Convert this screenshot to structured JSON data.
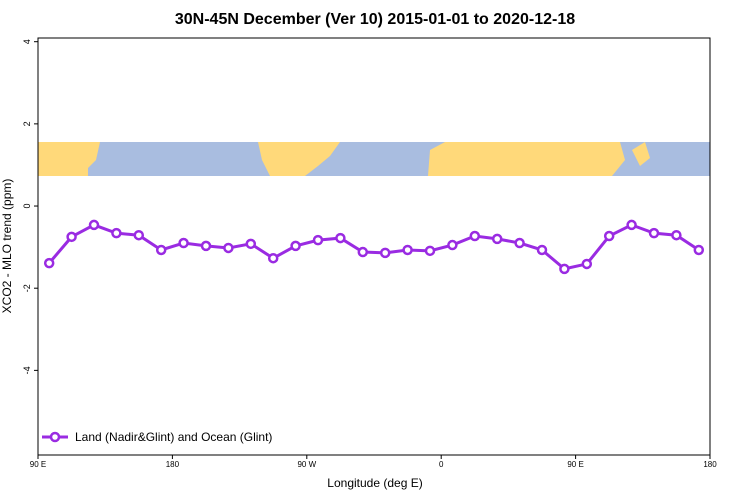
{
  "chart_data": {
    "type": "line",
    "title": "30N-45N December (Ver 10)   2015-01-01 to 2020-12-18",
    "x_label": "Longitude (deg E)",
    "y_label": "XCO2 - MLO trend (ppm)",
    "x": [
      97.5,
      112.5,
      127.5,
      142.5,
      157.5,
      172.5,
      187.5,
      202.5,
      217.5,
      232.5,
      247.5,
      262.5,
      277.5,
      292.5,
      307.5,
      322.5,
      337.5,
      352.5,
      367.5,
      382.5,
      397.5,
      412.5,
      427.5,
      442.5,
      457.5,
      472.5,
      487.5,
      502.5,
      517.5,
      532.5
    ],
    "series": [
      {
        "name": "Land (Nadir&Glint) and Ocean (Glint)",
        "color": "#9a2be2",
        "values": [
          -1.39,
          -0.75,
          -0.46,
          -0.66,
          -0.71,
          -1.07,
          -0.9,
          -0.97,
          -1.02,
          -0.92,
          -1.27,
          -0.97,
          -0.83,
          -0.78,
          -1.12,
          -1.14,
          -1.07,
          -1.09,
          -0.95,
          -0.73,
          -0.8,
          -0.9,
          -1.07,
          -1.53,
          -1.41,
          -0.73,
          -0.46,
          -0.66,
          -0.71,
          -1.07
        ]
      }
    ],
    "xlim": [
      90,
      540
    ],
    "ylim": [
      -6.06,
      4.09
    ],
    "xticks": [
      {
        "value": 90,
        "label": "90 E"
      },
      {
        "value": 180,
        "label": "180"
      },
      {
        "value": 270,
        "label": "90 W"
      },
      {
        "value": 360,
        "label": "0"
      },
      {
        "value": 450,
        "label": "90 E"
      },
      {
        "value": 540,
        "label": "180"
      }
    ],
    "yticks": [
      -4,
      -2,
      0,
      2,
      4
    ],
    "legend": "bottom-left"
  }
}
